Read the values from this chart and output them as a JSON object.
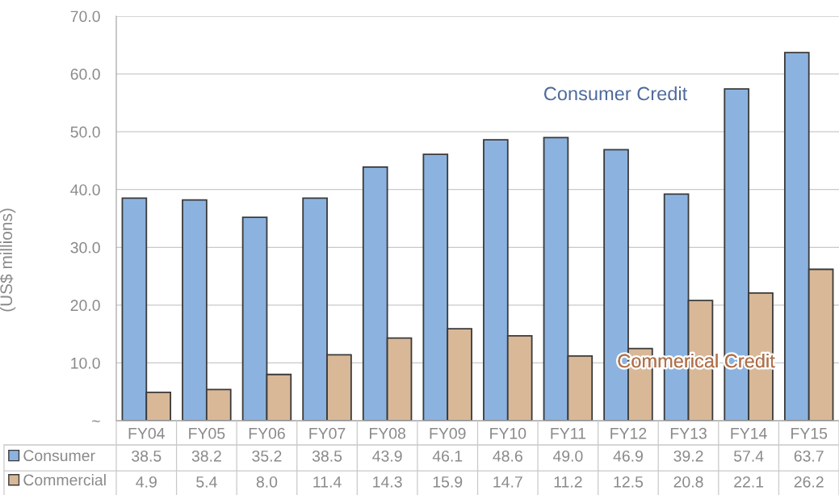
{
  "chart_data": {
    "type": "bar",
    "categories": [
      "FY04",
      "FY05",
      "FY06",
      "FY07",
      "FY08",
      "FY09",
      "FY10",
      "FY11",
      "FY12",
      "FY13",
      "FY14",
      "FY15"
    ],
    "series": [
      {
        "name": "Consumer",
        "color": "#8cb3df",
        "values": [
          38.5,
          38.2,
          35.2,
          38.5,
          43.9,
          46.1,
          48.6,
          49.0,
          46.9,
          39.2,
          57.4,
          63.7
        ],
        "value_labels": [
          "38.5",
          "38.2",
          "35.2",
          "38.5",
          "43.9",
          "46.1",
          "48.6",
          "49.0",
          "46.9",
          "39.2",
          "57.4",
          "63.7"
        ]
      },
      {
        "name": "Commercial",
        "color": "#d9b898",
        "values": [
          4.9,
          5.4,
          8.0,
          11.4,
          14.3,
          15.9,
          14.7,
          11.2,
          12.5,
          20.8,
          22.1,
          26.2
        ],
        "value_labels": [
          "4.9",
          "5.4",
          "8.0",
          "11.4",
          "14.3",
          "15.9",
          "14.7",
          "11.2",
          "12.5",
          "20.8",
          "22.1",
          "26.2"
        ]
      }
    ],
    "ylabel": "(US$ millions)",
    "ylim": [
      0,
      70
    ],
    "yticks": [
      {
        "value": 0,
        "label": "~"
      },
      {
        "value": 10,
        "label": "10.0"
      },
      {
        "value": 20,
        "label": "20.0"
      },
      {
        "value": 30,
        "label": "30.0"
      },
      {
        "value": 40,
        "label": "40.0"
      },
      {
        "value": 50,
        "label": "50.0"
      },
      {
        "value": 60,
        "label": "60.0"
      },
      {
        "value": 70,
        "label": "70.0"
      }
    ],
    "grid": "y",
    "legend": "bottom left",
    "annotations": [
      "Consumer Credit",
      "Commerical Credit"
    ]
  }
}
